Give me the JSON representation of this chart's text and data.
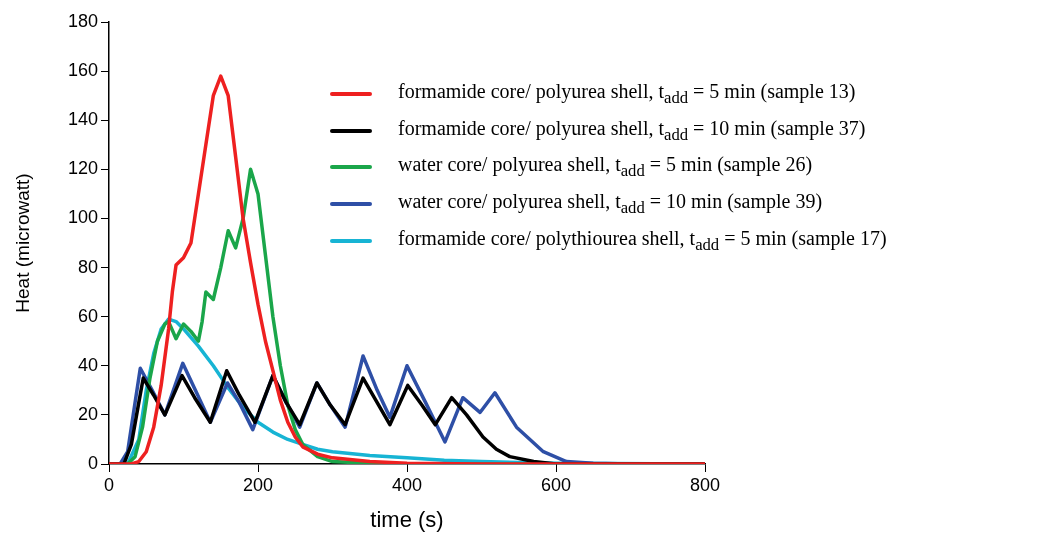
{
  "chart_data": {
    "type": "line",
    "xlabel": "time (s)",
    "ylabel": "Heat (microwatt)",
    "xlim": [
      0,
      800
    ],
    "xticks": [
      0,
      200,
      400,
      600,
      800
    ],
    "ylim": [
      0,
      180
    ],
    "yticks": [
      0,
      20,
      40,
      60,
      80,
      100,
      120,
      140,
      160,
      180
    ],
    "grid": false,
    "legend": "top right",
    "marker": "none",
    "line_style": "solid",
    "series": [
      {
        "name": "formamide core/ polyurea shell, t$_{add}$ = 5 min (sample 13)",
        "color": "#ee2020",
        "x": [
          0,
          30,
          40,
          50,
          60,
          70,
          80,
          85,
          90,
          100,
          110,
          120,
          130,
          140,
          150,
          160,
          170,
          180,
          190,
          200,
          210,
          220,
          230,
          240,
          250,
          260,
          280,
          300,
          350,
          400,
          500,
          800
        ],
        "values": [
          0,
          0,
          1,
          5,
          15,
          32,
          55,
          70,
          81,
          84,
          90,
          110,
          130,
          150,
          158,
          150,
          125,
          100,
          82,
          65,
          50,
          38,
          26,
          17,
          11,
          7,
          4,
          2.5,
          1,
          0.3,
          0,
          0
        ]
      },
      {
        "name": "formamide core/ polyurea shell, t$_{add}$ = 10 min (sample 37)",
        "color": "#000000",
        "x": [
          0,
          20,
          30,
          40,
          46,
          60,
          75,
          98,
          115,
          136,
          158,
          175,
          196,
          220,
          238,
          256,
          279,
          297,
          317,
          341,
          360,
          377,
          401,
          420,
          438,
          460,
          480,
          502,
          520,
          538,
          570,
          600,
          800
        ],
        "values": [
          0,
          0,
          8,
          25,
          35,
          28,
          20,
          36,
          27,
          17,
          38,
          28,
          17,
          36,
          25,
          16,
          33,
          24,
          16,
          35,
          25,
          16,
          32,
          24,
          16,
          27,
          20,
          11,
          6,
          3,
          1,
          0,
          0
        ]
      },
      {
        "name": "water core/ polyurea shell, t$_{add}$ = 5 min (sample 26)",
        "color": "#1aa64a",
        "x": [
          0,
          25,
          35,
          45,
          55,
          65,
          75,
          80,
          90,
          100,
          110,
          120,
          125,
          130,
          140,
          150,
          160,
          170,
          180,
          190,
          200,
          210,
          220,
          230,
          240,
          250,
          260,
          280,
          300,
          350,
          400,
          800
        ],
        "values": [
          0,
          0,
          3,
          15,
          35,
          50,
          57,
          58,
          51,
          57,
          54,
          50,
          58,
          70,
          67,
          80,
          95,
          88,
          100,
          120,
          110,
          85,
          60,
          40,
          24,
          14,
          8,
          3,
          1,
          0.3,
          0,
          0
        ]
      },
      {
        "name": "water core/ polyurea shell, t$_{add}$ = 10 min (sample 39)",
        "color": "#2e4fa6",
        "x": [
          0,
          15,
          25,
          35,
          42,
          58,
          75,
          99,
          116,
          136,
          159,
          175,
          193,
          220,
          238,
          256,
          279,
          297,
          317,
          341,
          360,
          377,
          400,
          425,
          451,
          475,
          498,
          518,
          547,
          583,
          614,
          650,
          700,
          800
        ],
        "values": [
          0,
          0,
          5,
          25,
          39,
          30,
          20,
          41,
          30,
          17,
          33,
          25,
          14,
          36,
          25,
          15,
          33,
          24,
          15,
          44,
          30,
          19,
          40,
          25,
          9,
          27,
          21,
          29,
          15,
          5,
          1,
          0.3,
          0,
          0
        ]
      },
      {
        "name": "formamide core/ polythiourea shell, t$_{add}$ = 5 min (sample 17)",
        "color": "#17b4d4",
        "x": [
          0,
          25,
          40,
          50,
          60,
          70,
          80,
          90,
          100,
          120,
          140,
          160,
          180,
          200,
          220,
          240,
          260,
          280,
          300,
          350,
          400,
          450,
          500,
          600,
          800
        ],
        "values": [
          0,
          0,
          10,
          30,
          45,
          55,
          59,
          58,
          55,
          48,
          40,
          31,
          23,
          17,
          13,
          10,
          8,
          6,
          5,
          3.5,
          2.5,
          1.5,
          1,
          0.3,
          0
        ]
      }
    ]
  }
}
